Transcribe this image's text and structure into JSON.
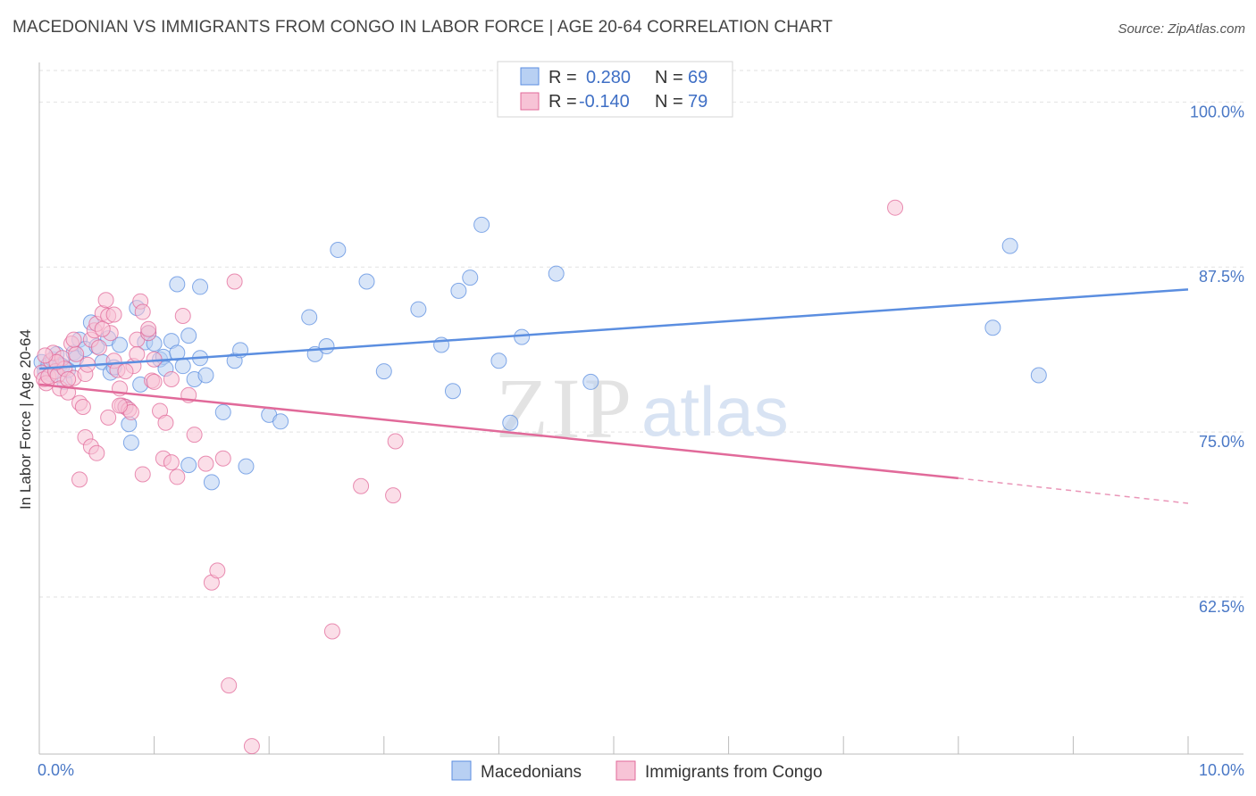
{
  "title": "MACEDONIAN VS IMMIGRANTS FROM CONGO IN LABOR FORCE | AGE 20-64 CORRELATION CHART",
  "source": "Source: ZipAtlas.com",
  "watermark": {
    "zip": "ZIP",
    "atlas": "atlas"
  },
  "legend_top": [
    {
      "r_label": "R =",
      "r_value": "0.280",
      "n_label": "N =",
      "n_value": "69",
      "color": "#5b8ee0",
      "fill": "#b8d0f3"
    },
    {
      "r_label": "R =",
      "r_value": "-0.140",
      "n_label": "N =",
      "n_value": "79",
      "color": "#e16a9a",
      "fill": "#f7c3d6"
    }
  ],
  "chart_data": {
    "type": "scatter",
    "title": "MACEDONIAN VS IMMIGRANTS FROM CONGO IN LABOR FORCE | AGE 20-64 CORRELATION CHART",
    "xlabel": "",
    "ylabel": "In Labor Force | Age 20-64",
    "xlim": [
      0,
      10
    ],
    "ylim": [
      50.6,
      103
    ],
    "x_tick_labels": [
      {
        "value": 0,
        "label": "0.0%"
      },
      {
        "value": 10,
        "label": "10.0%"
      }
    ],
    "y_ticks": [
      {
        "value": 100,
        "label": "100.0%"
      },
      {
        "value": 87.5,
        "label": "87.5%"
      },
      {
        "value": 75,
        "label": "75.0%"
      },
      {
        "value": 62.5,
        "label": "62.5%"
      }
    ],
    "grid": true,
    "legend_position": "top-center",
    "series": [
      {
        "name": "Macedonians",
        "color": "#5b8ee0",
        "fill": "#b8d0f3",
        "trend": {
          "x0": 0,
          "y0": 79.8,
          "x1": 10,
          "y1": 85.8
        },
        "points": [
          [
            0.02,
            80.3
          ],
          [
            0.05,
            79.6
          ],
          [
            0.08,
            80.1
          ],
          [
            0.1,
            79.4
          ],
          [
            0.12,
            80.5
          ],
          [
            0.15,
            80.9
          ],
          [
            0.18,
            80.1
          ],
          [
            0.2,
            80.0
          ],
          [
            0.22,
            78.8
          ],
          [
            0.25,
            79.7
          ],
          [
            0.3,
            81.0
          ],
          [
            0.32,
            80.6
          ],
          [
            0.35,
            82.0
          ],
          [
            0.4,
            81.3
          ],
          [
            0.45,
            83.3
          ],
          [
            0.5,
            81.5
          ],
          [
            0.55,
            80.3
          ],
          [
            0.6,
            82.1
          ],
          [
            0.62,
            79.5
          ],
          [
            0.65,
            79.9
          ],
          [
            0.7,
            81.6
          ],
          [
            0.75,
            76.9
          ],
          [
            0.78,
            75.6
          ],
          [
            0.8,
            74.2
          ],
          [
            0.85,
            84.4
          ],
          [
            0.88,
            78.6
          ],
          [
            0.92,
            81.8
          ],
          [
            0.95,
            82.5
          ],
          [
            1.0,
            81.7
          ],
          [
            1.05,
            80.5
          ],
          [
            1.08,
            80.7
          ],
          [
            1.1,
            79.8
          ],
          [
            1.15,
            81.9
          ],
          [
            1.2,
            81.0
          ],
          [
            1.25,
            80.0
          ],
          [
            1.3,
            82.3
          ],
          [
            1.35,
            79.0
          ],
          [
            1.4,
            80.6
          ],
          [
            1.45,
            79.3
          ],
          [
            1.5,
            71.2
          ],
          [
            1.3,
            72.5
          ],
          [
            1.6,
            76.5
          ],
          [
            1.7,
            80.4
          ],
          [
            1.75,
            81.2
          ],
          [
            1.8,
            72.4
          ],
          [
            2.0,
            76.3
          ],
          [
            2.1,
            75.8
          ],
          [
            2.35,
            83.7
          ],
          [
            2.4,
            80.9
          ],
          [
            2.5,
            81.5
          ],
          [
            2.6,
            88.8
          ],
          [
            2.85,
            86.4
          ],
          [
            3.0,
            79.6
          ],
          [
            3.3,
            84.3
          ],
          [
            3.5,
            81.6
          ],
          [
            3.6,
            78.1
          ],
          [
            3.65,
            85.7
          ],
          [
            3.75,
            86.7
          ],
          [
            3.85,
            90.7
          ],
          [
            4.0,
            80.4
          ],
          [
            4.1,
            75.7
          ],
          [
            4.2,
            82.2
          ],
          [
            4.5,
            87.0
          ],
          [
            4.8,
            78.8
          ],
          [
            1.2,
            86.2
          ],
          [
            1.4,
            86.0
          ],
          [
            8.3,
            82.9
          ],
          [
            8.45,
            89.1
          ],
          [
            8.7,
            79.3
          ]
        ]
      },
      {
        "name": "Immigrants from Congo",
        "color": "#e16a9a",
        "fill": "#f7c3d6",
        "trend": {
          "x0": 0,
          "y0": 78.6,
          "x1": 8.0,
          "y1": 71.5,
          "dash_to_x": 10,
          "dash_to_y": 69.6
        },
        "points": [
          [
            0.02,
            79.5
          ],
          [
            0.04,
            79.0
          ],
          [
            0.06,
            78.7
          ],
          [
            0.08,
            79.2
          ],
          [
            0.1,
            80.4
          ],
          [
            0.12,
            81.0
          ],
          [
            0.14,
            79.6
          ],
          [
            0.16,
            79.3
          ],
          [
            0.18,
            78.3
          ],
          [
            0.2,
            80.6
          ],
          [
            0.22,
            79.8
          ],
          [
            0.25,
            78.0
          ],
          [
            0.28,
            81.7
          ],
          [
            0.3,
            79.1
          ],
          [
            0.32,
            80.9
          ],
          [
            0.35,
            77.2
          ],
          [
            0.38,
            76.9
          ],
          [
            0.4,
            79.4
          ],
          [
            0.42,
            80.1
          ],
          [
            0.45,
            82.0
          ],
          [
            0.48,
            82.7
          ],
          [
            0.5,
            83.2
          ],
          [
            0.52,
            81.4
          ],
          [
            0.55,
            84.0
          ],
          [
            0.58,
            85.0
          ],
          [
            0.6,
            83.8
          ],
          [
            0.62,
            82.5
          ],
          [
            0.65,
            80.4
          ],
          [
            0.68,
            79.7
          ],
          [
            0.7,
            78.3
          ],
          [
            0.72,
            77.0
          ],
          [
            0.75,
            76.9
          ],
          [
            0.78,
            76.7
          ],
          [
            0.8,
            76.5
          ],
          [
            0.82,
            80.0
          ],
          [
            0.85,
            82.0
          ],
          [
            0.88,
            84.9
          ],
          [
            0.9,
            84.1
          ],
          [
            0.95,
            82.5
          ],
          [
            0.98,
            78.9
          ],
          [
            1.0,
            78.8
          ],
          [
            1.05,
            76.6
          ],
          [
            1.08,
            73.0
          ],
          [
            1.1,
            75.7
          ],
          [
            1.15,
            72.7
          ],
          [
            1.2,
            71.6
          ],
          [
            1.25,
            83.8
          ],
          [
            1.3,
            77.8
          ],
          [
            1.35,
            74.8
          ],
          [
            1.45,
            72.6
          ],
          [
            1.5,
            63.6
          ],
          [
            1.55,
            64.5
          ],
          [
            1.6,
            73.0
          ],
          [
            1.7,
            86.4
          ],
          [
            1.85,
            51.2
          ],
          [
            1.65,
            55.8
          ],
          [
            2.55,
            59.9
          ],
          [
            2.8,
            70.9
          ],
          [
            3.08,
            70.2
          ],
          [
            3.1,
            74.3
          ],
          [
            0.4,
            74.6
          ],
          [
            0.45,
            73.9
          ],
          [
            0.5,
            73.4
          ],
          [
            0.35,
            71.4
          ],
          [
            0.9,
            71.8
          ],
          [
            0.6,
            76.1
          ],
          [
            0.7,
            77.0
          ],
          [
            0.15,
            80.3
          ],
          [
            0.05,
            80.8
          ],
          [
            0.25,
            79.0
          ],
          [
            0.3,
            82.0
          ],
          [
            0.55,
            82.8
          ],
          [
            0.65,
            83.9
          ],
          [
            0.75,
            79.6
          ],
          [
            0.85,
            80.9
          ],
          [
            0.95,
            82.8
          ],
          [
            1.0,
            80.5
          ],
          [
            7.45,
            92.0
          ],
          [
            1.15,
            79.0
          ]
        ]
      }
    ]
  },
  "legend_bottom": [
    {
      "label": "Macedonians",
      "color": "#5b8ee0",
      "fill": "#b8d0f3"
    },
    {
      "label": "Immigrants from Congo",
      "color": "#e16a9a",
      "fill": "#f7c3d6"
    }
  ]
}
